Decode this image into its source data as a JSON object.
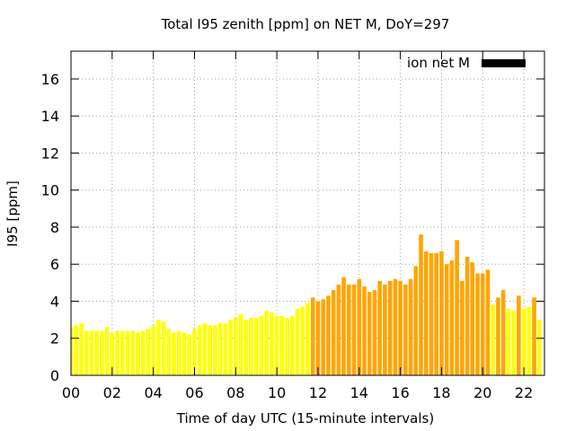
{
  "chart_data": {
    "type": "bar",
    "title": "Total I95 zenith [ppm] on NET M, DoY=297",
    "xlabel": "Time of day UTC (15-minute intervals)",
    "ylabel": "I95 [ppm]",
    "xlim": [
      0,
      23
    ],
    "ylim": [
      0,
      17.5
    ],
    "x_ticks": [
      0,
      2,
      4,
      6,
      8,
      10,
      12,
      14,
      16,
      18,
      20,
      22
    ],
    "x_tick_labels": [
      "00",
      "02",
      "04",
      "06",
      "08",
      "10",
      "12",
      "14",
      "16",
      "18",
      "20",
      "22"
    ],
    "y_ticks": [
      0,
      2,
      4,
      6,
      8,
      10,
      12,
      14,
      16
    ],
    "grid": true,
    "legend": {
      "label": "ion net M",
      "color": "#000000",
      "placement": "top-right"
    },
    "bar_width_hours": 0.2,
    "colors": {
      "yellow": "#ffff00",
      "orange": "#ffa500"
    },
    "bars": [
      {
        "t": 0.0,
        "v": 2.6,
        "c": "yellow"
      },
      {
        "t": 0.25,
        "v": 2.7,
        "c": "yellow"
      },
      {
        "t": 0.5,
        "v": 2.8,
        "c": "yellow"
      },
      {
        "t": 0.75,
        "v": 2.4,
        "c": "yellow"
      },
      {
        "t": 1.0,
        "v": 2.4,
        "c": "yellow"
      },
      {
        "t": 1.25,
        "v": 2.4,
        "c": "yellow"
      },
      {
        "t": 1.5,
        "v": 2.4,
        "c": "yellow"
      },
      {
        "t": 1.75,
        "v": 2.6,
        "c": "yellow"
      },
      {
        "t": 2.0,
        "v": 2.3,
        "c": "yellow"
      },
      {
        "t": 2.25,
        "v": 2.4,
        "c": "yellow"
      },
      {
        "t": 2.5,
        "v": 2.4,
        "c": "yellow"
      },
      {
        "t": 2.75,
        "v": 2.4,
        "c": "yellow"
      },
      {
        "t": 3.0,
        "v": 2.4,
        "c": "yellow"
      },
      {
        "t": 3.25,
        "v": 2.3,
        "c": "yellow"
      },
      {
        "t": 3.5,
        "v": 2.4,
        "c": "yellow"
      },
      {
        "t": 3.75,
        "v": 2.5,
        "c": "yellow"
      },
      {
        "t": 4.0,
        "v": 2.7,
        "c": "yellow"
      },
      {
        "t": 4.25,
        "v": 3.0,
        "c": "yellow"
      },
      {
        "t": 4.5,
        "v": 2.9,
        "c": "yellow"
      },
      {
        "t": 4.75,
        "v": 2.5,
        "c": "yellow"
      },
      {
        "t": 5.0,
        "v": 2.3,
        "c": "yellow"
      },
      {
        "t": 5.25,
        "v": 2.4,
        "c": "yellow"
      },
      {
        "t": 5.5,
        "v": 2.3,
        "c": "yellow"
      },
      {
        "t": 5.75,
        "v": 2.2,
        "c": "yellow"
      },
      {
        "t": 6.0,
        "v": 2.5,
        "c": "yellow"
      },
      {
        "t": 6.25,
        "v": 2.7,
        "c": "yellow"
      },
      {
        "t": 6.5,
        "v": 2.8,
        "c": "yellow"
      },
      {
        "t": 6.75,
        "v": 2.7,
        "c": "yellow"
      },
      {
        "t": 7.0,
        "v": 2.7,
        "c": "yellow"
      },
      {
        "t": 7.25,
        "v": 2.8,
        "c": "yellow"
      },
      {
        "t": 7.5,
        "v": 2.8,
        "c": "yellow"
      },
      {
        "t": 7.75,
        "v": 3.0,
        "c": "yellow"
      },
      {
        "t": 8.0,
        "v": 3.1,
        "c": "yellow"
      },
      {
        "t": 8.25,
        "v": 3.3,
        "c": "yellow"
      },
      {
        "t": 8.5,
        "v": 3.0,
        "c": "yellow"
      },
      {
        "t": 8.75,
        "v": 3.1,
        "c": "yellow"
      },
      {
        "t": 9.0,
        "v": 3.1,
        "c": "yellow"
      },
      {
        "t": 9.25,
        "v": 3.2,
        "c": "yellow"
      },
      {
        "t": 9.5,
        "v": 3.5,
        "c": "yellow"
      },
      {
        "t": 9.75,
        "v": 3.4,
        "c": "yellow"
      },
      {
        "t": 10.0,
        "v": 3.2,
        "c": "yellow"
      },
      {
        "t": 10.25,
        "v": 3.2,
        "c": "yellow"
      },
      {
        "t": 10.5,
        "v": 3.1,
        "c": "yellow"
      },
      {
        "t": 10.75,
        "v": 3.2,
        "c": "yellow"
      },
      {
        "t": 11.0,
        "v": 3.6,
        "c": "yellow"
      },
      {
        "t": 11.25,
        "v": 3.7,
        "c": "yellow"
      },
      {
        "t": 11.5,
        "v": 3.9,
        "c": "yellow"
      },
      {
        "t": 11.75,
        "v": 4.2,
        "c": "orange"
      },
      {
        "t": 12.0,
        "v": 4.0,
        "c": "orange"
      },
      {
        "t": 12.25,
        "v": 4.1,
        "c": "orange"
      },
      {
        "t": 12.5,
        "v": 4.3,
        "c": "orange"
      },
      {
        "t": 12.75,
        "v": 4.6,
        "c": "orange"
      },
      {
        "t": 13.0,
        "v": 4.9,
        "c": "orange"
      },
      {
        "t": 13.25,
        "v": 5.3,
        "c": "orange"
      },
      {
        "t": 13.5,
        "v": 4.9,
        "c": "orange"
      },
      {
        "t": 13.75,
        "v": 4.9,
        "c": "orange"
      },
      {
        "t": 14.0,
        "v": 5.2,
        "c": "orange"
      },
      {
        "t": 14.25,
        "v": 4.8,
        "c": "orange"
      },
      {
        "t": 14.5,
        "v": 4.5,
        "c": "orange"
      },
      {
        "t": 14.75,
        "v": 4.6,
        "c": "orange"
      },
      {
        "t": 15.0,
        "v": 5.1,
        "c": "orange"
      },
      {
        "t": 15.25,
        "v": 4.9,
        "c": "orange"
      },
      {
        "t": 15.5,
        "v": 5.1,
        "c": "orange"
      },
      {
        "t": 15.75,
        "v": 5.2,
        "c": "orange"
      },
      {
        "t": 16.0,
        "v": 5.1,
        "c": "orange"
      },
      {
        "t": 16.25,
        "v": 4.9,
        "c": "orange"
      },
      {
        "t": 16.5,
        "v": 5.2,
        "c": "orange"
      },
      {
        "t": 16.75,
        "v": 5.9,
        "c": "orange"
      },
      {
        "t": 17.0,
        "v": 7.6,
        "c": "orange"
      },
      {
        "t": 17.25,
        "v": 6.7,
        "c": "orange"
      },
      {
        "t": 17.5,
        "v": 6.6,
        "c": "orange"
      },
      {
        "t": 17.75,
        "v": 6.6,
        "c": "orange"
      },
      {
        "t": 18.0,
        "v": 6.7,
        "c": "orange"
      },
      {
        "t": 18.25,
        "v": 6.0,
        "c": "orange"
      },
      {
        "t": 18.5,
        "v": 6.2,
        "c": "orange"
      },
      {
        "t": 18.75,
        "v": 7.3,
        "c": "orange"
      },
      {
        "t": 19.0,
        "v": 5.1,
        "c": "orange"
      },
      {
        "t": 19.25,
        "v": 6.4,
        "c": "orange"
      },
      {
        "t": 19.5,
        "v": 6.1,
        "c": "orange"
      },
      {
        "t": 19.75,
        "v": 5.5,
        "c": "orange"
      },
      {
        "t": 20.0,
        "v": 5.5,
        "c": "orange"
      },
      {
        "t": 20.25,
        "v": 5.7,
        "c": "orange"
      },
      {
        "t": 20.5,
        "v": 3.8,
        "c": "yellow"
      },
      {
        "t": 20.75,
        "v": 4.2,
        "c": "orange"
      },
      {
        "t": 21.0,
        "v": 4.6,
        "c": "orange"
      },
      {
        "t": 21.25,
        "v": 3.6,
        "c": "yellow"
      },
      {
        "t": 21.5,
        "v": 3.5,
        "c": "yellow"
      },
      {
        "t": 21.75,
        "v": 4.3,
        "c": "orange"
      },
      {
        "t": 22.0,
        "v": 3.6,
        "c": "yellow"
      },
      {
        "t": 22.25,
        "v": 3.7,
        "c": "yellow"
      },
      {
        "t": 22.5,
        "v": 4.2,
        "c": "orange"
      },
      {
        "t": 22.75,
        "v": 3.0,
        "c": "yellow"
      }
    ]
  }
}
